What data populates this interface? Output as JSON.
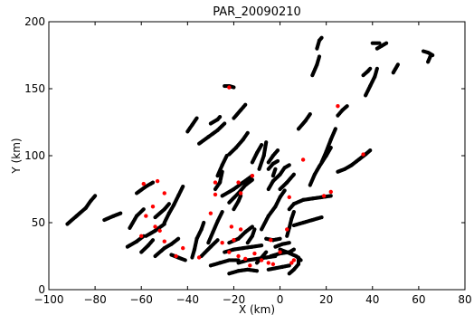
{
  "chart_data": {
    "type": "scatter",
    "title": "PAR_20090210",
    "xlabel": "X (km)",
    "ylabel": "Y (km)",
    "xlim": [
      -100,
      80
    ],
    "ylim": [
      0,
      200
    ],
    "xticks": [
      -100,
      -80,
      -60,
      -40,
      -20,
      0,
      20,
      40,
      60,
      80
    ],
    "yticks": [
      0,
      50,
      100,
      150,
      200
    ],
    "tick_labels_x": [
      "−100",
      "−80",
      "−60",
      "−40",
      "−20",
      "0",
      "20",
      "40",
      "60",
      "80"
    ],
    "tick_labels_y": [
      "0",
      "50",
      "100",
      "150",
      "200"
    ],
    "grid": false,
    "colors": {
      "primary": "#000000",
      "secondary": "#ff0000"
    },
    "series": [
      {
        "color": "#000000",
        "segments": [
          [
            [
              -92,
              49
            ],
            [
              -88,
              55
            ],
            [
              -84,
              61
            ],
            [
              -82,
              66
            ],
            [
              -80,
              70
            ]
          ],
          [
            [
              -76,
              52
            ],
            [
              -72,
              55
            ],
            [
              -69,
              57
            ]
          ],
          [
            [
              -62,
              72
            ],
            [
              -58,
              77
            ],
            [
              -55,
              80
            ]
          ],
          [
            [
              -65,
              46
            ],
            [
              -62,
              55
            ],
            [
              -59,
              60
            ]
          ],
          [
            [
              -58,
              40
            ],
            [
              -54,
              44
            ],
            [
              -50,
              49
            ]
          ],
          [
            [
              -66,
              32
            ],
            [
              -62,
              36
            ],
            [
              -59,
              40
            ]
          ],
          [
            [
              -60,
              28
            ],
            [
              -57,
              33
            ],
            [
              -55,
              37
            ]
          ],
          [
            [
              -54,
              25
            ],
            [
              -50,
              31
            ],
            [
              -47,
              34
            ],
            [
              -44,
              38
            ]
          ],
          [
            [
              -50,
              50
            ],
            [
              -48,
              57
            ],
            [
              -46,
              63
            ],
            [
              -44,
              70
            ],
            [
              -42,
              77
            ]
          ],
          [
            [
              -54,
              54
            ],
            [
              -50,
              60
            ],
            [
              -48,
              64
            ]
          ],
          [
            [
              -41,
              22
            ],
            [
              -44,
              24
            ],
            [
              -47,
              26
            ]
          ],
          [
            [
              -38,
              24
            ],
            [
              -37,
              30
            ],
            [
              -36,
              38
            ],
            [
              -34,
              45
            ],
            [
              -33,
              50
            ]
          ],
          [
            [
              -34,
              25
            ],
            [
              -30,
              32
            ],
            [
              -27,
              37
            ]
          ],
          [
            [
              -31,
              35
            ],
            [
              -29,
              43
            ],
            [
              -27,
              51
            ],
            [
              -25,
              58
            ]
          ],
          [
            [
              -35,
              109
            ],
            [
              -31,
              114
            ],
            [
              -27,
              119
            ],
            [
              -24,
              124
            ]
          ],
          [
            [
              -40,
              118
            ],
            [
              -38,
              123
            ],
            [
              -36,
              128
            ]
          ],
          [
            [
              -30,
              124
            ],
            [
              -27,
              127
            ],
            [
              -26,
              129
            ]
          ],
          [
            [
              -20,
              128
            ],
            [
              -17,
              134
            ],
            [
              -15,
              138
            ]
          ],
          [
            [
              -22,
              101
            ],
            [
              -19,
              106
            ],
            [
              -16,
              112
            ],
            [
              -14,
              117
            ]
          ],
          [
            [
              -27,
              85
            ],
            [
              -25,
              93
            ],
            [
              -23,
              100
            ]
          ],
          [
            [
              -28,
              75
            ],
            [
              -26,
              80
            ],
            [
              -25,
              88
            ]
          ],
          [
            [
              -25,
              70
            ],
            [
              -20,
              75
            ],
            [
              -16,
              80
            ],
            [
              -12,
              85
            ]
          ],
          [
            [
              -22,
              65
            ],
            [
              -18,
              72
            ],
            [
              -15,
              78
            ],
            [
              -12,
              82
            ]
          ],
          [
            [
              -20,
              60
            ],
            [
              -18,
              66
            ],
            [
              -17,
              70
            ]
          ],
          [
            [
              -12,
              95
            ],
            [
              -10,
              102
            ],
            [
              -8,
              108
            ]
          ],
          [
            [
              -9,
              90
            ],
            [
              -7,
              100
            ],
            [
              -6,
              110
            ]
          ],
          [
            [
              -5,
              95
            ],
            [
              -3,
              100
            ],
            [
              -1,
              104
            ]
          ],
          [
            [
              -5,
              90
            ],
            [
              -3,
              94
            ],
            [
              -1,
              96
            ]
          ],
          [
            [
              -5,
              75
            ],
            [
              -3,
              81
            ],
            [
              0,
              86
            ],
            [
              2,
              91
            ],
            [
              4,
              93
            ]
          ],
          [
            [
              -8,
              45
            ],
            [
              -5,
              55
            ],
            [
              -2,
              62
            ],
            [
              0,
              69
            ],
            [
              2,
              74
            ]
          ],
          [
            [
              -3,
              85
            ],
            [
              -2,
              90
            ]
          ],
          [
            [
              0,
              75
            ],
            [
              3,
              80
            ],
            [
              6,
              86
            ]
          ],
          [
            [
              4,
              60
            ],
            [
              6,
              64
            ],
            [
              10,
              67
            ],
            [
              14,
              68
            ],
            [
              18,
              69
            ],
            [
              22,
              70
            ]
          ],
          [
            [
              6,
              48
            ],
            [
              10,
              50
            ],
            [
              14,
              52
            ],
            [
              18,
              54
            ]
          ],
          [
            [
              3,
              40
            ],
            [
              4,
              46
            ],
            [
              5,
              53
            ],
            [
              6,
              58
            ]
          ],
          [
            [
              13,
              78
            ],
            [
              15,
              86
            ],
            [
              17,
              92
            ],
            [
              20,
              100
            ],
            [
              22,
              106
            ]
          ],
          [
            [
              18,
              95
            ],
            [
              20,
              103
            ],
            [
              22,
              112
            ],
            [
              24,
              120
            ]
          ],
          [
            [
              8,
              120
            ],
            [
              11,
              126
            ],
            [
              13,
              131
            ]
          ],
          [
            [
              25,
              88
            ],
            [
              28,
              90
            ],
            [
              31,
              93
            ],
            [
              34,
              97
            ],
            [
              37,
              101
            ],
            [
              39,
              104
            ]
          ],
          [
            [
              14,
              160
            ],
            [
              16,
              168
            ],
            [
              17,
              174
            ]
          ],
          [
            [
              16,
              180
            ],
            [
              17,
              186
            ],
            [
              18,
              188
            ]
          ],
          [
            [
              25,
              130
            ],
            [
              27,
              134
            ],
            [
              29,
              137
            ]
          ],
          [
            [
              37,
              145
            ],
            [
              39,
              152
            ],
            [
              41,
              159
            ],
            [
              42,
              165
            ]
          ],
          [
            [
              36,
              160
            ],
            [
              38,
              163
            ],
            [
              39,
              165
            ]
          ],
          [
            [
              42,
              180
            ],
            [
              44,
              182
            ],
            [
              46,
              184
            ]
          ],
          [
            [
              49,
              162
            ],
            [
              50,
              165
            ],
            [
              51,
              168
            ]
          ],
          [
            [
              40,
              184
            ],
            [
              43,
              184
            ]
          ],
          [
            [
              62,
              178
            ],
            [
              64,
              177
            ],
            [
              66,
              175
            ]
          ],
          [
            [
              64,
              170
            ],
            [
              65,
              174
            ]
          ],
          [
            [
              -24,
              152
            ],
            [
              -22,
              152
            ],
            [
              -20,
              151
            ]
          ],
          [
            [
              -22,
              35
            ],
            [
              -18,
              38
            ],
            [
              -15,
              43
            ],
            [
              -12,
              47
            ]
          ],
          [
            [
              -14,
              35
            ],
            [
              -12,
              40
            ],
            [
              -11,
              45
            ]
          ],
          [
            [
              -24,
              28
            ],
            [
              -20,
              30
            ],
            [
              -16,
              31
            ],
            [
              -12,
              32
            ],
            [
              -8,
              33
            ]
          ],
          [
            [
              -18,
              20
            ],
            [
              -14,
              22
            ],
            [
              -10,
              23
            ],
            [
              -6,
              24
            ],
            [
              -2,
              25
            ]
          ],
          [
            [
              -22,
              12
            ],
            [
              -18,
              14
            ],
            [
              -14,
              15
            ],
            [
              -10,
              14
            ]
          ],
          [
            [
              -30,
              18
            ],
            [
              -26,
              20
            ],
            [
              -22,
              22
            ],
            [
              -18,
              22
            ]
          ],
          [
            [
              -5,
              15
            ],
            [
              -2,
              16
            ],
            [
              1,
              17
            ],
            [
              4,
              18
            ]
          ],
          [
            [
              -4,
              25
            ],
            [
              0,
              27
            ],
            [
              4,
              28
            ],
            [
              6,
              30
            ]
          ],
          [
            [
              -2,
              32
            ],
            [
              1,
              34
            ],
            [
              4,
              35
            ]
          ],
          [
            [
              0,
              30
            ],
            [
              3,
              28
            ],
            [
              7,
              25
            ],
            [
              9,
              22
            ]
          ],
          [
            [
              -6,
              38
            ],
            [
              -3,
              37
            ],
            [
              0,
              38
            ]
          ],
          [
            [
              -10,
              20
            ],
            [
              -8,
              24
            ],
            [
              -6,
              28
            ]
          ],
          [
            [
              4,
              12
            ],
            [
              6,
              15
            ],
            [
              8,
              19
            ],
            [
              8,
              24
            ]
          ]
        ]
      },
      {
        "color": "#ff0000",
        "points": [
          [
            -59,
            79
          ],
          [
            -53,
            81
          ],
          [
            -50,
            72
          ],
          [
            -55,
            62
          ],
          [
            -58,
            55
          ],
          [
            -60,
            40
          ],
          [
            -52,
            44
          ],
          [
            -54,
            47
          ],
          [
            -50,
            36
          ],
          [
            -45,
            25
          ],
          [
            -42,
            31
          ],
          [
            -35,
            24
          ],
          [
            -30,
            57
          ],
          [
            -28,
            71
          ],
          [
            -28,
            80
          ],
          [
            -22,
            151
          ],
          [
            -18,
            80
          ],
          [
            -17,
            72
          ],
          [
            -12,
            85
          ],
          [
            -17,
            45
          ],
          [
            -21,
            47
          ],
          [
            -20,
            37
          ],
          [
            -22,
            28
          ],
          [
            -18,
            25
          ],
          [
            -15,
            23
          ],
          [
            -11,
            27
          ],
          [
            -8,
            22
          ],
          [
            -5,
            20
          ],
          [
            -3,
            19
          ],
          [
            0,
            28
          ],
          [
            -4,
            37
          ],
          [
            6,
            22
          ],
          [
            5,
            20
          ],
          [
            3,
            45
          ],
          [
            4,
            69
          ],
          [
            10,
            97
          ],
          [
            19,
            70
          ],
          [
            22,
            73
          ],
          [
            25,
            137
          ],
          [
            36,
            101
          ],
          [
            -25,
            35
          ],
          [
            -13,
            18
          ]
        ]
      }
    ]
  }
}
